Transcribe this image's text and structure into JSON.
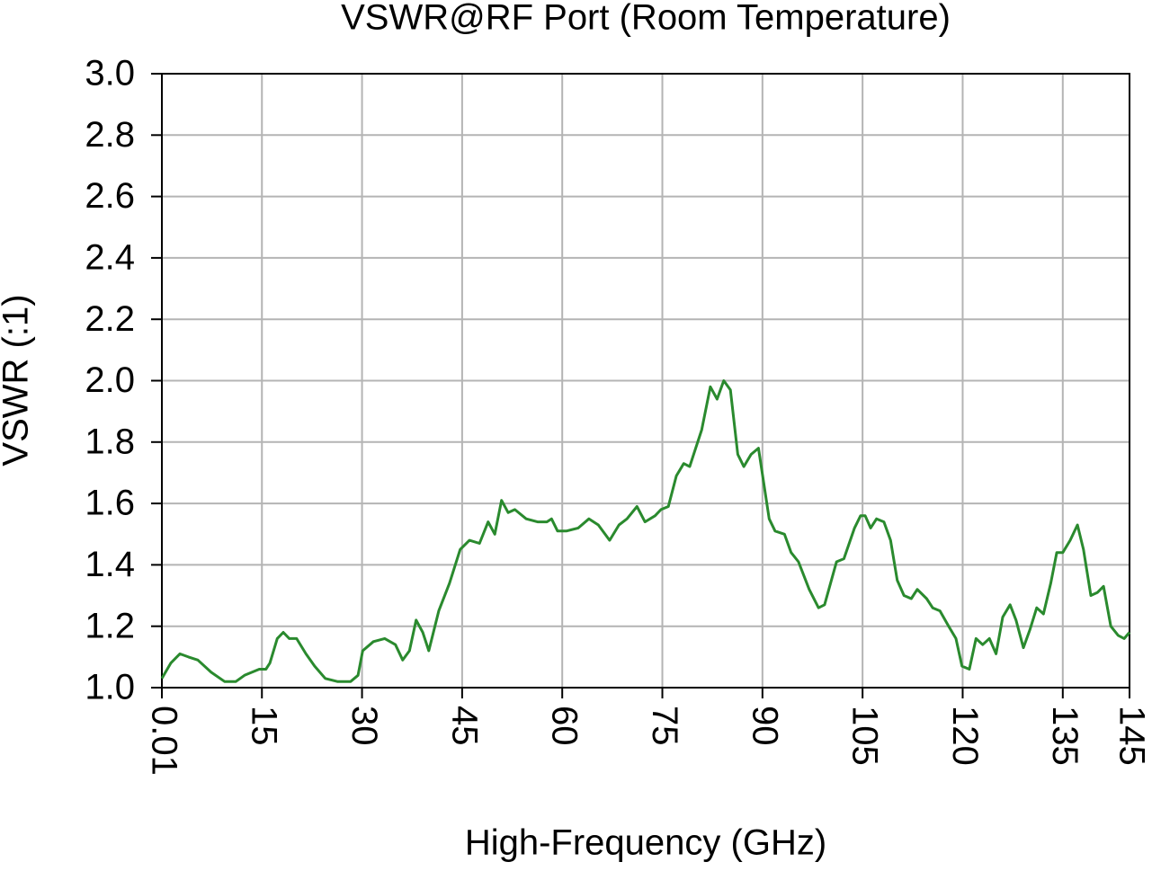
{
  "chart_data": {
    "type": "line",
    "title": "VSWR@RF Port (Room Temperature)",
    "x_label": "High-Frequency (GHz)",
    "y_label": "VSWR (:1)",
    "xlim": [
      0.01,
      145
    ],
    "ylim": [
      1,
      3
    ],
    "xticks": [
      0.01,
      15,
      30,
      45,
      60,
      75,
      90,
      105,
      120,
      135,
      145
    ],
    "yticks": [
      {
        "value": 1,
        "label": "1.0"
      },
      1.2,
      1.4,
      1.6,
      1.8,
      {
        "value": 2,
        "label": "2.0"
      },
      2.2,
      2.4,
      2.6,
      2.8,
      {
        "value": 3,
        "label": "3.0"
      }
    ],
    "grid": true,
    "x": [
      0.01,
      1.35,
      2.7,
      4.0,
      5.4,
      7.4,
      9.4,
      11.1,
      12.4,
      14.6,
      15.6,
      16.2,
      17.3,
      18.2,
      19.1,
      20.2,
      21.6,
      22.9,
      24.5,
      26.3,
      28.3,
      29.4,
      30.1,
      31.7,
      33.4,
      35.0,
      36.1,
      37.1,
      38.1,
      39.1,
      40.0,
      41.5,
      43.1,
      44.7,
      46.1,
      47.6,
      48.9,
      49.9,
      50.9,
      51.9,
      52.9,
      54.6,
      56.3,
      57.7,
      58.4,
      59.3,
      60.6,
      62.4,
      64.0,
      65.4,
      67.1,
      68.5,
      69.7,
      71.2,
      72.4,
      73.9,
      74.8,
      75.9,
      77.1,
      78.2,
      79.1,
      80.9,
      82.2,
      83.2,
      84.2,
      85.2,
      86.3,
      87.2,
      88.3,
      89.4,
      91.0,
      91.9,
      93.3,
      94.3,
      95.4,
      97.0,
      98.4,
      99.3,
      101.1,
      102.2,
      103.8,
      104.7,
      105.4,
      106.2,
      107.1,
      108.2,
      109.2,
      110.2,
      111.2,
      112.3,
      113.2,
      114.6,
      115.5,
      116.6,
      117.9,
      119.0,
      119.9,
      121.0,
      122.0,
      123.0,
      124.0,
      125.0,
      126.0,
      127.1,
      128.0,
      129.1,
      130.1,
      131.1,
      132.1,
      133.2,
      134.1,
      135.0,
      136.1,
      137.2,
      138.1,
      139.2,
      140.2,
      141.1,
      142.2,
      143.3,
      144.2,
      145.0
    ],
    "series": [
      {
        "color": "#2a8a2e",
        "values": [
          1.03,
          1.08,
          1.11,
          1.1,
          1.09,
          1.05,
          1.02,
          1.02,
          1.04,
          1.06,
          1.06,
          1.08,
          1.16,
          1.18,
          1.16,
          1.16,
          1.11,
          1.07,
          1.03,
          1.02,
          1.02,
          1.04,
          1.12,
          1.15,
          1.16,
          1.14,
          1.09,
          1.12,
          1.22,
          1.18,
          1.12,
          1.25,
          1.34,
          1.45,
          1.48,
          1.47,
          1.54,
          1.5,
          1.61,
          1.57,
          1.58,
          1.55,
          1.54,
          1.54,
          1.55,
          1.51,
          1.51,
          1.52,
          1.55,
          1.53,
          1.48,
          1.53,
          1.55,
          1.59,
          1.54,
          1.56,
          1.58,
          1.59,
          1.69,
          1.73,
          1.72,
          1.84,
          1.98,
          1.94,
          2.0,
          1.97,
          1.76,
          1.72,
          1.76,
          1.78,
          1.55,
          1.51,
          1.5,
          1.44,
          1.41,
          1.32,
          1.26,
          1.27,
          1.41,
          1.42,
          1.52,
          1.56,
          1.56,
          1.52,
          1.55,
          1.54,
          1.48,
          1.35,
          1.3,
          1.29,
          1.32,
          1.29,
          1.26,
          1.25,
          1.2,
          1.16,
          1.07,
          1.06,
          1.16,
          1.14,
          1.16,
          1.11,
          1.23,
          1.27,
          1.22,
          1.13,
          1.19,
          1.26,
          1.24,
          1.34,
          1.44,
          1.44,
          1.48,
          1.53,
          1.45,
          1.3,
          1.31,
          1.33,
          1.2,
          1.17,
          1.16,
          1.18
        ]
      }
    ]
  }
}
